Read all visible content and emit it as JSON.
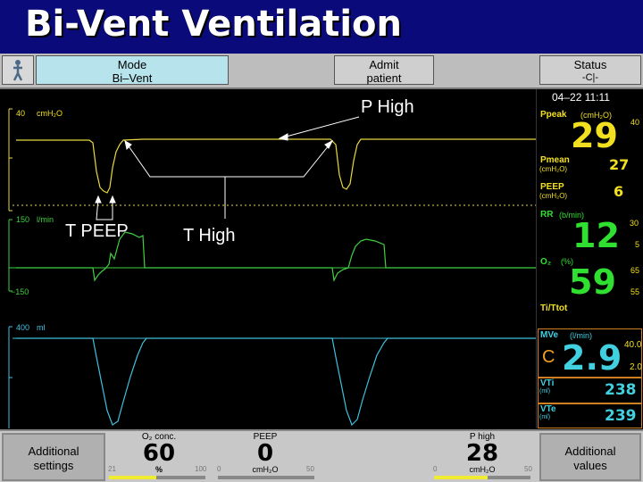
{
  "title": "Bi-Vent Ventilation",
  "toolbar": {
    "mode_label": "Mode",
    "mode_value": "Bi–Vent",
    "admit_line1": "Admit",
    "admit_line2": "patient",
    "status_label": "Status",
    "status_icon": "-С|-"
  },
  "waveforms": {
    "pressure": {
      "top": "40",
      "unit": "cmH₂O"
    },
    "flow": {
      "top": "150",
      "unit": "l/min",
      "bottom": "−150"
    },
    "volume": {
      "top": "400",
      "unit": "ml"
    }
  },
  "annotations": {
    "p_high": "P High",
    "t_peep": "T PEEP",
    "t_high": "T High"
  },
  "panel": {
    "datetime": "04–22   11:11",
    "ppeak_label": "Ppeak",
    "ppeak_unit": "(cmH₂O)",
    "ppeak_value": "29",
    "ppeak_limit": "40",
    "pmean_label": "Pmean",
    "pmean_unit": "(cmH₂O)",
    "pmean_value": "27",
    "peep_label": "PEEP",
    "peep_unit": "(cmH₂O)",
    "peep_value": "6",
    "rr_label": "RR",
    "rr_unit": "(b/min)",
    "rr_value": "12",
    "rr_high": "30",
    "rr_low": "5",
    "o2_label": "O₂",
    "o2_unit": "(%)",
    "o2_value": "59",
    "o2_high": "65",
    "o2_low": "55",
    "titot_label": "Ti/Ttot",
    "mve_label": "MVe",
    "mve_unit": "(l/min)",
    "mve_value": "2.9",
    "mve_mark": "C",
    "mve_high": "40.0",
    "mve_low": "2.0",
    "vti_label": "VTi",
    "vti_unit": "(ml)",
    "vti_value": "238",
    "vte_label": "VTe",
    "vte_unit": "(ml)",
    "vte_value": "239"
  },
  "bottom": {
    "additional_settings": [
      "Additional",
      "settings"
    ],
    "additional_values": [
      "Additional",
      "values"
    ],
    "o2": {
      "label": "O₂ conc.",
      "value": "60",
      "unit": "%",
      "min": "21",
      "max": "100",
      "fraction": 0.49
    },
    "peep": {
      "label": "PEEP",
      "value": "0",
      "unit": "cmH₂O",
      "min": "0",
      "max": "50",
      "fraction": 0.0
    },
    "phigh": {
      "label": "P high",
      "value": "28",
      "unit": "cmH₂O",
      "min": "0",
      "max": "50",
      "fraction": 0.56
    }
  },
  "colors": {
    "pressure": "#e8d840",
    "flow": "#40d040",
    "volume": "#40c0e0",
    "title_bg": "#0a0a7a",
    "mode_bg": "#b7e3ec"
  }
}
